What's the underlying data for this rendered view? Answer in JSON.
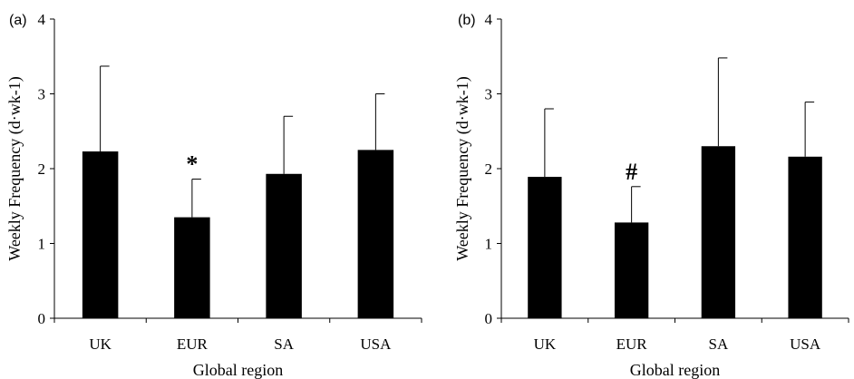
{
  "chart_data": [
    {
      "type": "bar",
      "panel_label": "(a)",
      "categories": [
        "UK",
        "EUR",
        "SA",
        "USA"
      ],
      "values": [
        2.23,
        1.35,
        1.93,
        2.25
      ],
      "error_upper": [
        3.37,
        1.86,
        2.7,
        3.0
      ],
      "annotations": [
        {
          "category": "EUR",
          "text": "*"
        }
      ],
      "xlabel": "Global region",
      "ylabel": "Weekly Frequency (d·wk-1)",
      "ylim": [
        0,
        4
      ],
      "yticks": [
        "0",
        "1",
        "2",
        "3",
        "4"
      ],
      "bar_color": "#000000",
      "grid": false
    },
    {
      "type": "bar",
      "panel_label": "(b)",
      "categories": [
        "UK",
        "EUR",
        "SA",
        "USA"
      ],
      "values": [
        1.89,
        1.28,
        2.3,
        2.16
      ],
      "error_upper": [
        2.8,
        1.76,
        3.48,
        2.89
      ],
      "annotations": [
        {
          "category": "EUR",
          "text": "#"
        }
      ],
      "xlabel": "Global region",
      "ylabel": "Weekly Frequency (d·wk-1)",
      "ylim": [
        0,
        4
      ],
      "yticks": [
        "0",
        "1",
        "2",
        "3",
        "4"
      ],
      "bar_color": "#000000",
      "grid": false
    }
  ]
}
